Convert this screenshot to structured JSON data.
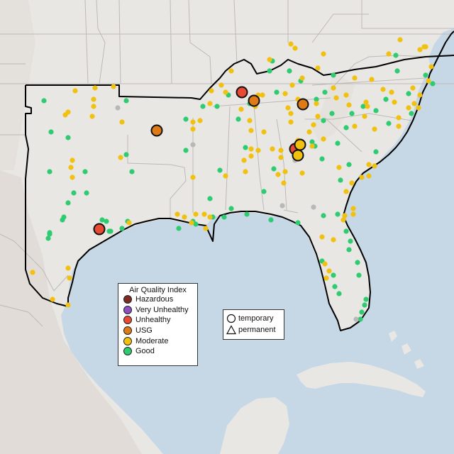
{
  "colors": {
    "water": "#c6d8e6",
    "land": "#e9e7e4",
    "terrain_dark": "#d9d5d0",
    "border": "#bdb9b6",
    "region_outline": "#000000",
    "Hazardous": "#7e2c21",
    "Very Unhealthy": "#8e4fbf",
    "Unhealthy": "#e84a33",
    "USG": "#e07a17",
    "Moderate": "#f2c10e",
    "Good": "#2ecc71",
    "no_data": "#b8b8b8"
  },
  "legend": {
    "title": "Air Quality Index",
    "categories": [
      {
        "label": "Hazardous",
        "color": "#7e2c21"
      },
      {
        "label": "Very Unhealthy",
        "color": "#8e4fbf"
      },
      {
        "label": "Unhealthy",
        "color": "#e84a33"
      },
      {
        "label": "USG",
        "color": "#e07a17"
      },
      {
        "label": "Moderate",
        "color": "#f2c10e"
      },
      {
        "label": "Good",
        "color": "#2ecc71"
      }
    ]
  },
  "shape_legend": {
    "items": [
      {
        "label": "temporary",
        "shape": "circle-icon"
      },
      {
        "label": "permanent",
        "shape": "triangle-icon"
      }
    ]
  }
}
